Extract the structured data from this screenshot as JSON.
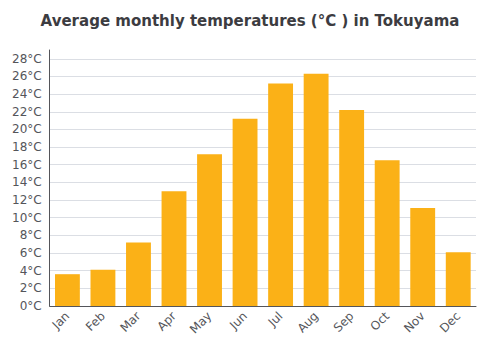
{
  "chart_data": {
    "type": "bar",
    "title": "Average monthly temperatures (°C ) in Tokuyama",
    "categories": [
      "Jan",
      "Feb",
      "Mar",
      "Apr",
      "May",
      "Jun",
      "Jul",
      "Aug",
      "Sep",
      "Oct",
      "Nov",
      "Dec"
    ],
    "values": [
      3.6,
      4.1,
      7.2,
      13.0,
      17.2,
      21.2,
      25.2,
      26.3,
      22.2,
      16.5,
      11.1,
      6.1
    ],
    "color": "#FBB117",
    "ylim": [
      0,
      29
    ],
    "yticks": [
      {
        "value": 0,
        "label": "0°C"
      },
      {
        "value": 2,
        "label": "2°C"
      },
      {
        "value": 4,
        "label": "4°C"
      },
      {
        "value": 6,
        "label": "6°C"
      },
      {
        "value": 8,
        "label": "8°C"
      },
      {
        "value": 10,
        "label": "10°C"
      },
      {
        "value": 12,
        "label": "12°C"
      },
      {
        "value": 14,
        "label": "14°C"
      },
      {
        "value": 16,
        "label": "16°C"
      },
      {
        "value": 18,
        "label": "18°C"
      },
      {
        "value": 20,
        "label": "20°C"
      },
      {
        "value": 22,
        "label": "22°C"
      },
      {
        "value": 24,
        "label": "24°C"
      },
      {
        "value": 26,
        "label": "26°C"
      },
      {
        "value": 28,
        "label": "28°C"
      }
    ],
    "grid": true
  }
}
